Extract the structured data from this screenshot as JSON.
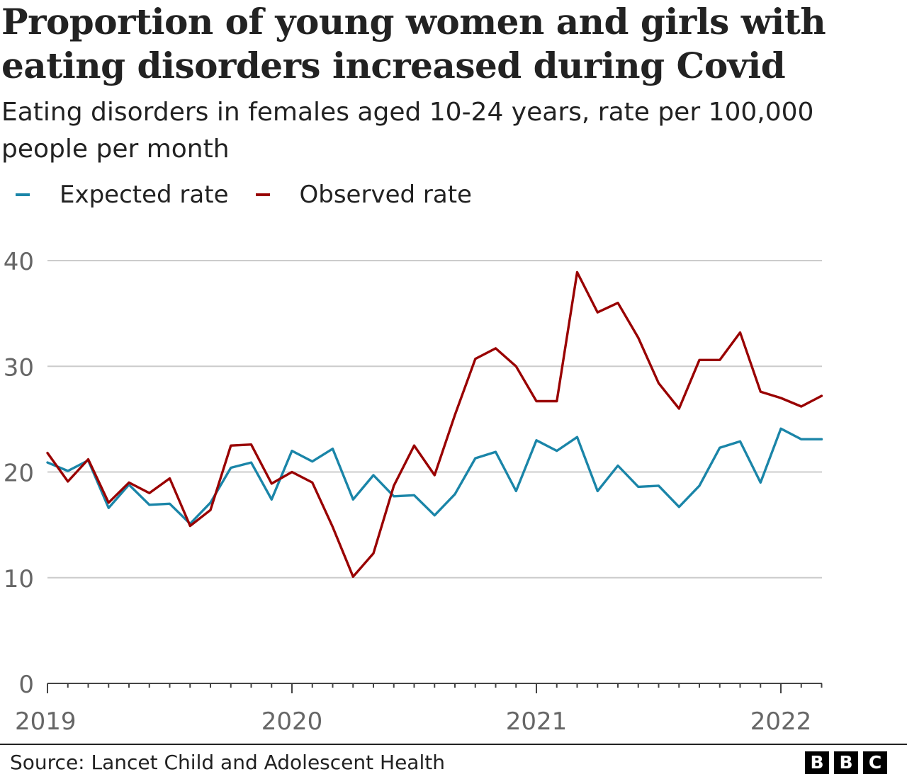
{
  "chart_data": {
    "type": "line",
    "title": "Proportion of young women and girls with eating disorders increased during Covid",
    "subtitle": "Eating disorders in females aged 10-24 years, rate per 100,000 people per month",
    "xlabel": "",
    "ylabel": "",
    "ylim": [
      0,
      40
    ],
    "yticks": [
      "0",
      "10",
      "20",
      "30",
      "40"
    ],
    "xticks": [
      "2019",
      "2020",
      "2021",
      "2022"
    ],
    "x": [
      "2019-01",
      "2019-02",
      "2019-03",
      "2019-04",
      "2019-05",
      "2019-06",
      "2019-07",
      "2019-08",
      "2019-09",
      "2019-10",
      "2019-11",
      "2019-12",
      "2020-01",
      "2020-02",
      "2020-03",
      "2020-04",
      "2020-05",
      "2020-06",
      "2020-07",
      "2020-08",
      "2020-09",
      "2020-10",
      "2020-11",
      "2020-12",
      "2021-01",
      "2021-02",
      "2021-03",
      "2021-04",
      "2021-05",
      "2021-06",
      "2021-07",
      "2021-08",
      "2021-09",
      "2021-10",
      "2021-11",
      "2021-12",
      "2022-01",
      "2022-02",
      "2022-03"
    ],
    "series": [
      {
        "name": "Expected rate",
        "color": "#1a85a8",
        "values": [
          20.9,
          20.1,
          21.1,
          16.6,
          18.8,
          16.9,
          17.0,
          15.1,
          17.1,
          20.4,
          20.9,
          17.4,
          22.0,
          21.0,
          22.2,
          17.4,
          19.7,
          17.7,
          17.8,
          15.9,
          17.9,
          21.3,
          21.9,
          18.2,
          23.0,
          22.0,
          23.3,
          18.2,
          20.6,
          18.6,
          18.7,
          16.7,
          18.7,
          22.3,
          22.9,
          19.0,
          24.1,
          23.1,
          23.1
        ]
      },
      {
        "name": "Observed rate",
        "color": "#990000",
        "values": [
          21.8,
          19.1,
          21.2,
          17.1,
          19.0,
          18.0,
          19.4,
          14.9,
          16.4,
          22.5,
          22.6,
          18.9,
          20.0,
          19.0,
          14.8,
          10.1,
          12.3,
          18.7,
          22.5,
          19.7,
          25.4,
          30.7,
          31.7,
          30.0,
          26.7,
          26.7,
          38.9,
          35.1,
          36.0,
          32.7,
          28.4,
          26.0,
          30.6,
          30.6,
          33.2,
          27.6,
          27.0,
          26.2,
          27.2
        ]
      }
    ]
  },
  "source": "Source: Lancet Child and Adolescent Health",
  "logo": [
    "B",
    "B",
    "C"
  ]
}
